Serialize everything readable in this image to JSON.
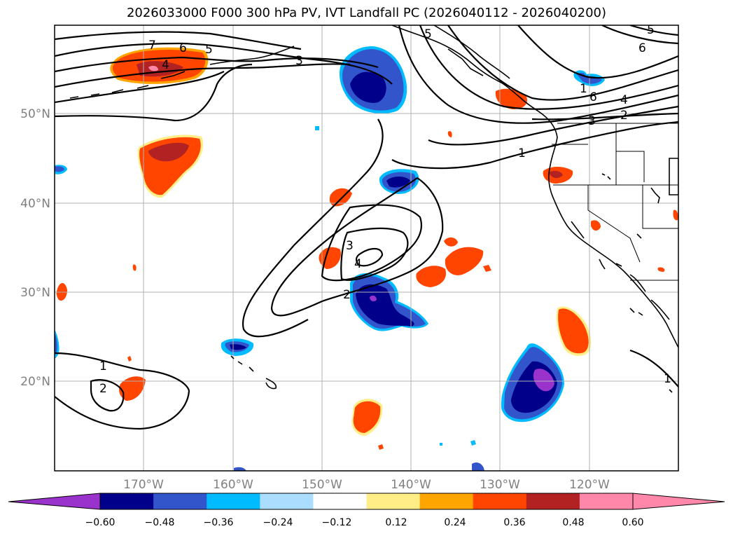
{
  "title": "2026033000 F000 300 hPa PV, IVT Landfall PC (2026040112 - 2026040200)",
  "map": {
    "lon_labels": [
      "170°W",
      "160°W",
      "150°W",
      "140°W",
      "130°W",
      "120°W"
    ],
    "lat_labels": [
      "50°N",
      "40°N",
      "30°N",
      "20°N"
    ],
    "contour_labels": [
      "7",
      "6",
      "5",
      "4",
      "3",
      "5",
      "6",
      "5",
      "1",
      "6",
      "4",
      "3",
      "2",
      "1",
      "3",
      "4",
      "2",
      "1",
      "2",
      "1"
    ]
  },
  "colorbar": {
    "ticks": [
      "−0.60",
      "−0.48",
      "−0.36",
      "−0.24",
      "−0.12",
      "0.12",
      "0.24",
      "0.36",
      "0.48",
      "0.60"
    ],
    "colors": [
      "#9933CC",
      "#00008B",
      "#3355CC",
      "#00BBFF",
      "#AADDFF",
      "#FFFFFF",
      "#FFEE88",
      "#FFA500",
      "#FF4500",
      "#B22222",
      "#FF88AA",
      "#FF88AA"
    ]
  }
}
